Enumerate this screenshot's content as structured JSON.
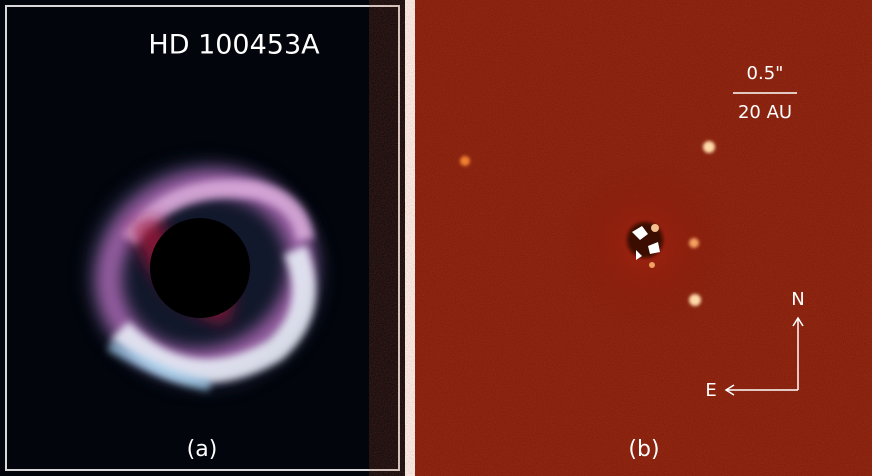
{
  "panels": [
    {
      "title": "HD 100453A",
      "label": "(a)"
    },
    {
      "label": "(b)",
      "scale_bar": {
        "top": "0.5\"",
        "bottom": "20 AU"
      },
      "compass": {
        "north": "N",
        "east": "E"
      }
    }
  ]
}
